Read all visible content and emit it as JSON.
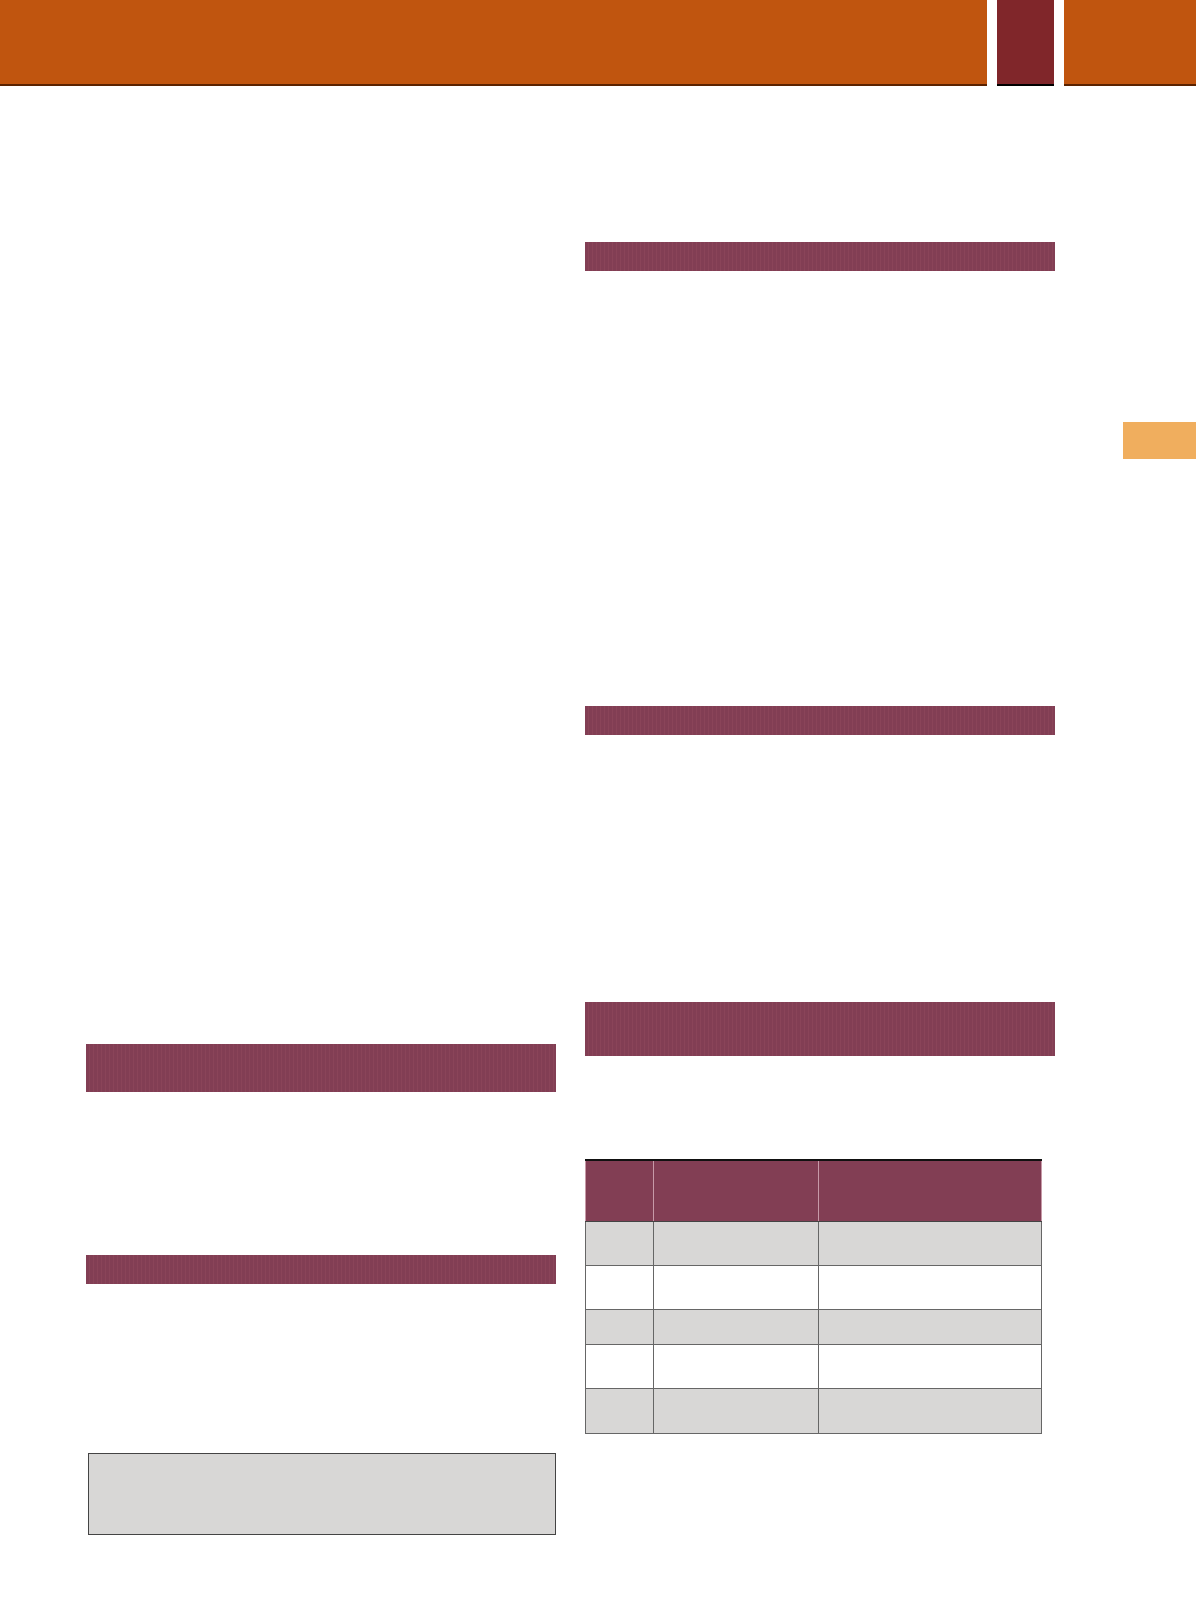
{
  "colors": {
    "header_orange": "#C0550F",
    "header_dark_red": "#80262A",
    "section_bar": "#823E54",
    "side_tab": "#F0AE5E",
    "table_stripe": "#D8D7D6"
  },
  "table": {
    "rows": [
      [
        "",
        "",
        ""
      ],
      [
        "",
        "",
        ""
      ],
      [
        "",
        "",
        ""
      ],
      [
        "",
        "",
        ""
      ],
      [
        "",
        "",
        ""
      ]
    ]
  }
}
